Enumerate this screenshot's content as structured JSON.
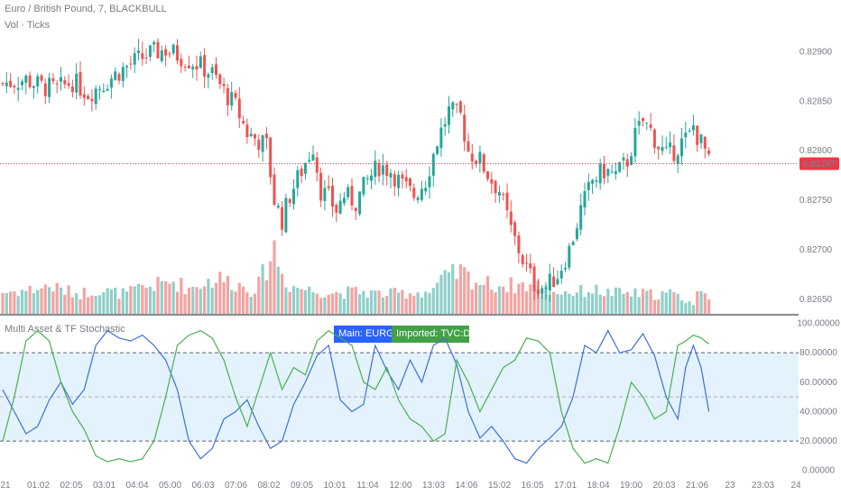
{
  "header": {
    "title": "Euro / British Pound, 7, BLACKBULL",
    "volume_label": "Vol · Ticks"
  },
  "indicator": {
    "title": "Multi Asset & TF Stochastic",
    "main_badge": "Main: EURGBP",
    "imported_badge": "Imported: TVC:DXY"
  },
  "colors": {
    "up": "#26a69a",
    "down": "#ef5350",
    "vol_up": "#8fd0c9",
    "vol_down": "#f4a3a1",
    "price_tag": "#f23645",
    "main_line": "#3f6fd8",
    "imported_line": "#4caf50",
    "band_fill": "#e3f2fd"
  },
  "chart_data": [
    {
      "type": "candlestick",
      "title": "Euro / British Pound, 7, BLACKBULL",
      "y_ticks": [
        "0.82900",
        "0.82850",
        "0.82800",
        "0.82750",
        "0.82700",
        "0.82650"
      ],
      "y_tick_values": [
        0.829,
        0.8285,
        0.828,
        0.8275,
        0.827,
        0.8265
      ],
      "ylim": [
        0.82638,
        0.82945
      ],
      "last_price_label": "0.82787",
      "last_price": 0.82787,
      "x_ticks": [
        "21",
        "01:02",
        "02:05",
        "03:01",
        "04:04",
        "05:00",
        "06:03",
        "07:06",
        "08:02",
        "09:05",
        "10:01",
        "11:04",
        "12:00",
        "13:03",
        "14:06",
        "15:02",
        "16:05",
        "17:01",
        "18:04",
        "19:00",
        "20:03",
        "21:06",
        "23",
        "23:03",
        "24"
      ],
      "close_path": [
        [
          0,
          0.82868
        ],
        [
          6,
          0.82872
        ],
        [
          10,
          0.82865
        ],
        [
          14,
          0.82862
        ],
        [
          18,
          0.8287
        ],
        [
          22,
          0.82858
        ],
        [
          26,
          0.82868
        ],
        [
          30,
          0.8288
        ],
        [
          34,
          0.8289
        ],
        [
          38,
          0.82898
        ],
        [
          42,
          0.82902
        ],
        [
          46,
          0.82895
        ],
        [
          50,
          0.82888
        ],
        [
          54,
          0.82878
        ],
        [
          57,
          0.8286
        ],
        [
          60,
          0.82845
        ],
        [
          63,
          0.82818
        ],
        [
          66,
          0.8281
        ],
        [
          68,
          0.82805
        ],
        [
          70,
          0.8275
        ],
        [
          72,
          0.8273
        ],
        [
          74,
          0.82755
        ],
        [
          77,
          0.8278
        ],
        [
          80,
          0.82805
        ],
        [
          82,
          0.8276
        ],
        [
          84,
          0.82752
        ],
        [
          86,
          0.8274
        ],
        [
          88,
          0.82755
        ],
        [
          91,
          0.82748
        ],
        [
          94,
          0.8277
        ],
        [
          97,
          0.82785
        ],
        [
          100,
          0.8278
        ],
        [
          103,
          0.82765
        ],
        [
          106,
          0.82755
        ],
        [
          109,
          0.8277
        ],
        [
          112,
          0.8281
        ],
        [
          115,
          0.8284
        ],
        [
          118,
          0.82835
        ],
        [
          120,
          0.828
        ],
        [
          123,
          0.8279
        ],
        [
          126,
          0.8277
        ],
        [
          128,
          0.8276
        ],
        [
          131,
          0.8272
        ],
        [
          134,
          0.8269
        ],
        [
          137,
          0.82665
        ],
        [
          140,
          0.82662
        ],
        [
          143,
          0.82675
        ],
        [
          146,
          0.827
        ],
        [
          149,
          0.8274
        ],
        [
          152,
          0.8277
        ],
        [
          155,
          0.8278
        ],
        [
          158,
          0.82775
        ],
        [
          161,
          0.8279
        ],
        [
          163,
          0.82815
        ],
        [
          165,
          0.8283
        ],
        [
          167,
          0.8282
        ],
        [
          169,
          0.82805
        ],
        [
          171,
          0.82795
        ],
        [
          173,
          0.828
        ],
        [
          175,
          0.82808
        ],
        [
          177,
          0.82815
        ],
        [
          178,
          0.82825
        ],
        [
          179,
          0.82815
        ],
        [
          181,
          0.828
        ],
        [
          182,
          0.82787
        ]
      ],
      "volume_ylim": [
        0,
        1200
      ],
      "volume_path": [
        [
          0,
          320
        ],
        [
          8,
          360
        ],
        [
          12,
          410
        ],
        [
          16,
          340
        ],
        [
          20,
          300
        ],
        [
          24,
          360
        ],
        [
          28,
          320
        ],
        [
          32,
          300
        ],
        [
          36,
          390
        ],
        [
          40,
          430
        ],
        [
          44,
          480
        ],
        [
          48,
          380
        ],
        [
          52,
          470
        ],
        [
          56,
          520
        ],
        [
          60,
          450
        ],
        [
          64,
          360
        ],
        [
          66,
          430
        ],
        [
          68,
          700
        ],
        [
          70,
          980
        ],
        [
          72,
          580
        ],
        [
          74,
          420
        ],
        [
          80,
          340
        ],
        [
          86,
          310
        ],
        [
          92,
          330
        ],
        [
          98,
          290
        ],
        [
          104,
          310
        ],
        [
          110,
          330
        ],
        [
          114,
          520
        ],
        [
          118,
          620
        ],
        [
          122,
          480
        ],
        [
          126,
          430
        ],
        [
          130,
          420
        ],
        [
          134,
          430
        ],
        [
          138,
          410
        ],
        [
          142,
          330
        ],
        [
          148,
          320
        ],
        [
          152,
          360
        ],
        [
          156,
          310
        ],
        [
          162,
          300
        ],
        [
          168,
          290
        ],
        [
          172,
          300
        ],
        [
          176,
          210
        ],
        [
          178,
          140
        ],
        [
          180,
          420
        ],
        [
          182,
          300
        ]
      ]
    },
    {
      "type": "line",
      "title": "Multi Asset & TF Stochastic",
      "x_count": 183,
      "ylim": [
        -2,
        104
      ],
      "y_ticks": [
        "100.00000",
        "80.00000",
        "60.00000",
        "40.00000",
        "20.00000",
        "0.00000"
      ],
      "y_tick_values": [
        100,
        80,
        60,
        40,
        20,
        0
      ],
      "band": [
        20,
        80
      ],
      "dashed_levels": [
        80,
        50,
        20
      ],
      "series": [
        {
          "name": "EURGBP",
          "points": [
            [
              0,
              55
            ],
            [
              3,
              40
            ],
            [
              6,
              25
            ],
            [
              9,
              30
            ],
            [
              12,
              48
            ],
            [
              15,
              60
            ],
            [
              18,
              45
            ],
            [
              21,
              55
            ],
            [
              24,
              85
            ],
            [
              27,
              95
            ],
            [
              30,
              90
            ],
            [
              33,
              88
            ],
            [
              36,
              92
            ],
            [
              39,
              85
            ],
            [
              42,
              75
            ],
            [
              45,
              55
            ],
            [
              48,
              20
            ],
            [
              51,
              8
            ],
            [
              54,
              15
            ],
            [
              57,
              35
            ],
            [
              60,
              40
            ],
            [
              63,
              48
            ],
            [
              66,
              30
            ],
            [
              69,
              15
            ],
            [
              72,
              20
            ],
            [
              75,
              45
            ],
            [
              78,
              60
            ],
            [
              81,
              78
            ],
            [
              84,
              85
            ],
            [
              87,
              48
            ],
            [
              90,
              40
            ],
            [
              93,
              45
            ],
            [
              96,
              85
            ],
            [
              99,
              68
            ],
            [
              102,
              55
            ],
            [
              105,
              75
            ],
            [
              108,
              60
            ],
            [
              111,
              85
            ],
            [
              114,
              90
            ],
            [
              117,
              72
            ],
            [
              120,
              40
            ],
            [
              123,
              22
            ],
            [
              126,
              30
            ],
            [
              129,
              20
            ],
            [
              132,
              8
            ],
            [
              135,
              5
            ],
            [
              138,
              15
            ],
            [
              141,
              22
            ],
            [
              144,
              30
            ],
            [
              147,
              50
            ],
            [
              150,
              85
            ],
            [
              153,
              80
            ],
            [
              156,
              95
            ],
            [
              159,
              80
            ],
            [
              162,
              82
            ],
            [
              165,
              93
            ],
            [
              168,
              78
            ],
            [
              171,
              50
            ],
            [
              174,
              35
            ],
            [
              176,
              70
            ],
            [
              178,
              85
            ],
            [
              180,
              70
            ],
            [
              182,
              40
            ]
          ]
        },
        {
          "name": "TVC:DXY",
          "points": [
            [
              0,
              20
            ],
            [
              3,
              50
            ],
            [
              6,
              88
            ],
            [
              9,
              95
            ],
            [
              12,
              88
            ],
            [
              15,
              60
            ],
            [
              18,
              40
            ],
            [
              21,
              28
            ],
            [
              24,
              10
            ],
            [
              27,
              6
            ],
            [
              30,
              8
            ],
            [
              33,
              6
            ],
            [
              36,
              8
            ],
            [
              39,
              20
            ],
            [
              42,
              50
            ],
            [
              45,
              85
            ],
            [
              48,
              92
            ],
            [
              51,
              95
            ],
            [
              54,
              90
            ],
            [
              57,
              75
            ],
            [
              60,
              50
            ],
            [
              63,
              30
            ],
            [
              66,
              55
            ],
            [
              69,
              80
            ],
            [
              72,
              55
            ],
            [
              75,
              70
            ],
            [
              78,
              65
            ],
            [
              81,
              88
            ],
            [
              84,
              95
            ],
            [
              87,
              90
            ],
            [
              90,
              85
            ],
            [
              93,
              60
            ],
            [
              96,
              55
            ],
            [
              99,
              70
            ],
            [
              102,
              48
            ],
            [
              105,
              35
            ],
            [
              108,
              30
            ],
            [
              111,
              20
            ],
            [
              114,
              25
            ],
            [
              117,
              75
            ],
            [
              120,
              60
            ],
            [
              123,
              40
            ],
            [
              126,
              55
            ],
            [
              129,
              70
            ],
            [
              132,
              75
            ],
            [
              135,
              90
            ],
            [
              138,
              88
            ],
            [
              141,
              80
            ],
            [
              144,
              40
            ],
            [
              147,
              15
            ],
            [
              150,
              5
            ],
            [
              153,
              8
            ],
            [
              156,
              5
            ],
            [
              159,
              30
            ],
            [
              162,
              60
            ],
            [
              165,
              50
            ],
            [
              168,
              35
            ],
            [
              171,
              40
            ],
            [
              174,
              85
            ],
            [
              176,
              88
            ],
            [
              178,
              92
            ],
            [
              180,
              90
            ],
            [
              182,
              86
            ]
          ]
        }
      ]
    }
  ]
}
